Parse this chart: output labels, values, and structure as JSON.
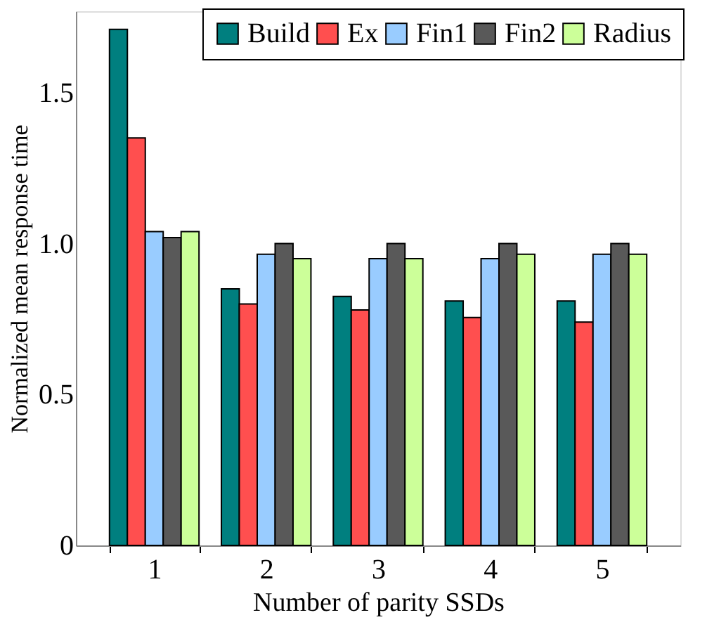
{
  "chart_data": {
    "type": "bar",
    "xlabel": "Number of parity SSDs",
    "ylabel": "Normalized mean response time",
    "categories": [
      "1",
      "2",
      "3",
      "4",
      "5"
    ],
    "series": [
      {
        "name": "Build",
        "color": "#007f7f",
        "values": [
          1.71,
          0.85,
          0.825,
          0.81,
          0.81
        ]
      },
      {
        "name": "Ex",
        "color": "#ff4f4f",
        "values": [
          1.35,
          0.8,
          0.78,
          0.755,
          0.74
        ]
      },
      {
        "name": "Fin1",
        "color": "#99ccff",
        "values": [
          1.04,
          0.965,
          0.95,
          0.95,
          0.965
        ]
      },
      {
        "name": "Fin2",
        "color": "#595959",
        "values": [
          1.02,
          1.0,
          1.0,
          1.0,
          1.0
        ]
      },
      {
        "name": "Radius",
        "color": "#ccff99",
        "values": [
          1.04,
          0.95,
          0.95,
          0.965,
          0.965
        ]
      }
    ],
    "ylim": [
      0,
      1.77
    ],
    "yticks": [
      0,
      {
        "value": 0.5,
        "label": "0.5"
      },
      {
        "value": 1.0,
        "label": "1.0"
      },
      {
        "value": 1.5,
        "label": "1.5"
      }
    ],
    "legend": "top right",
    "grid": false
  }
}
